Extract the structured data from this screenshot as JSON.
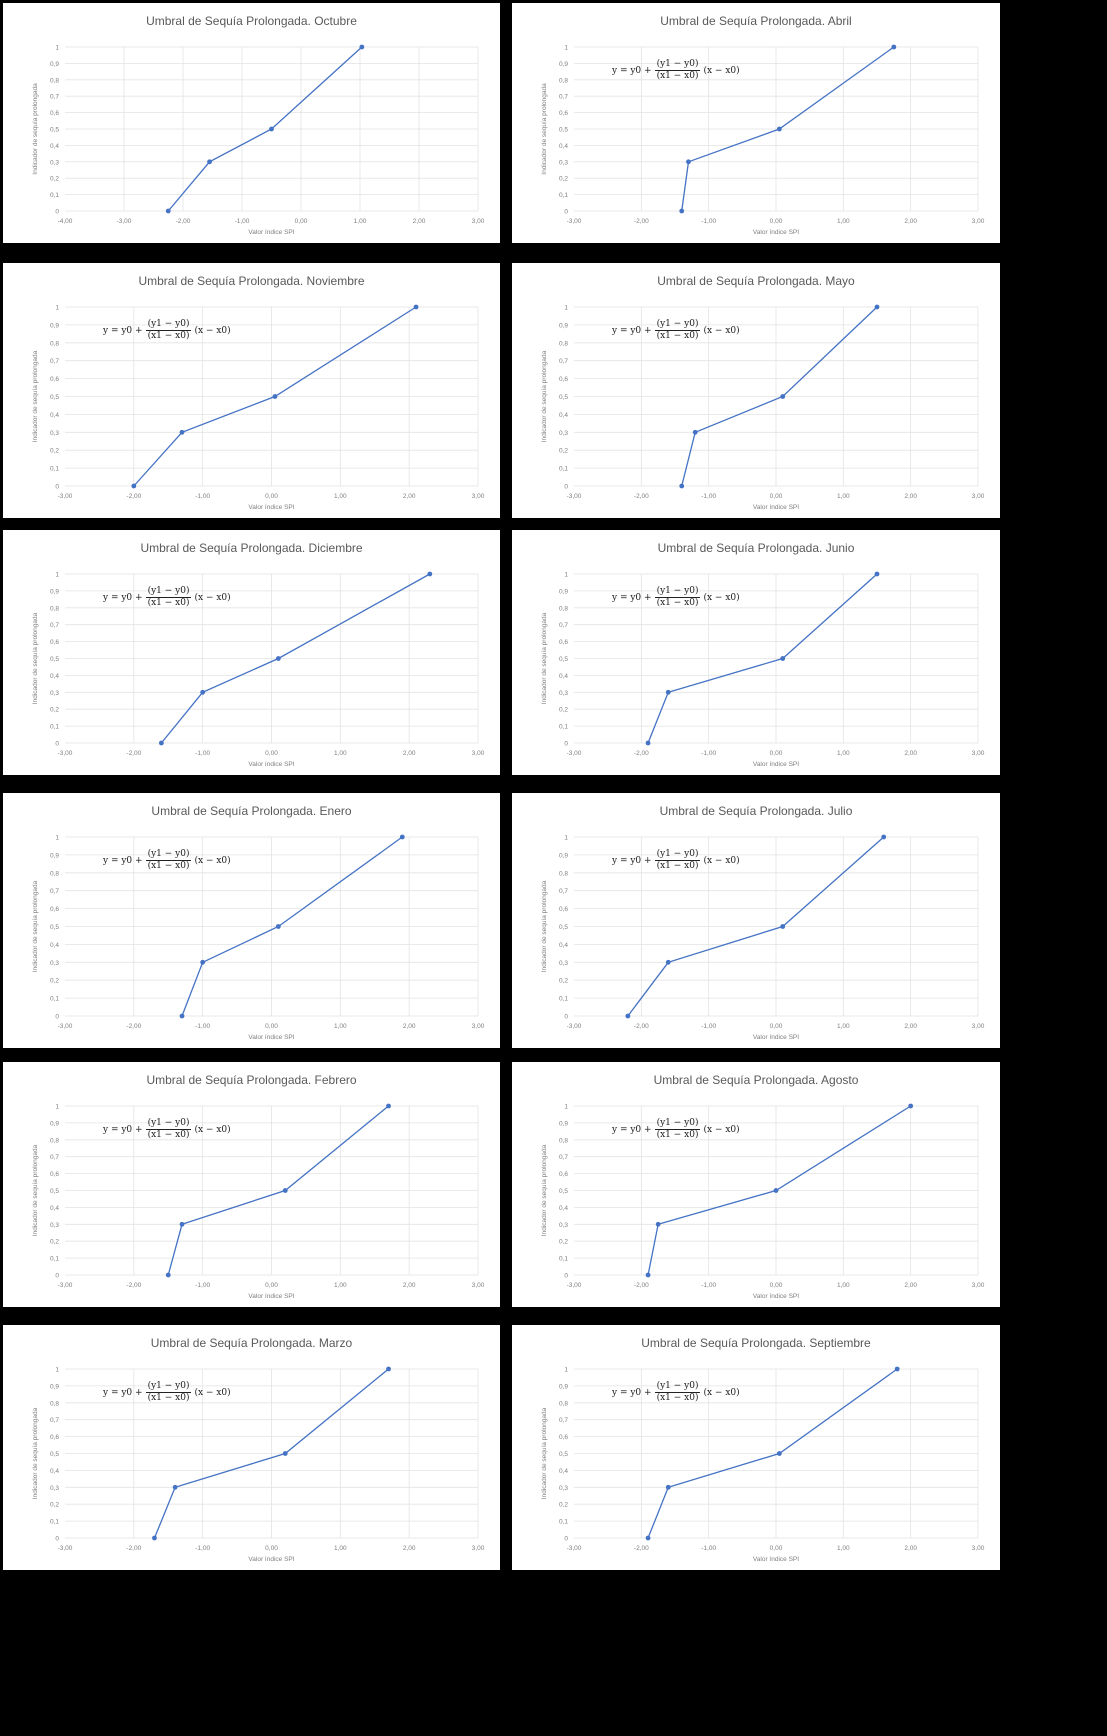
{
  "colors": {
    "series": "#4472c4",
    "grid": "#e3e3e3",
    "title": "#595959",
    "axis_text": "#7f7f7f"
  },
  "formula": {
    "lhs": "y = y0 +",
    "num": "(y1 − y0)",
    "den": "(x1 − x0)",
    "rhs": "(x − x0)"
  },
  "chart_data": [
    {
      "type": "line",
      "title": "Umbral de Sequía Prolongada. Octubre",
      "xlabel": "Valor índice SPI",
      "ylabel": "Indicador de sequía prolongada",
      "xlim": [
        -4,
        4
      ],
      "xticks": [
        "-4,00",
        "-3,00",
        "-2,00",
        "-1,00",
        "0,00",
        "1,00",
        "2,00",
        "3,00"
      ],
      "ylim": [
        0,
        1
      ],
      "yticks": [
        "0",
        "0,1",
        "0,2",
        "0,3",
        "0,4",
        "0,5",
        "0,6",
        "0,7",
        "0,8",
        "0,9",
        "1"
      ],
      "x": [
        -2.0,
        -1.2,
        0.0,
        1.75
      ],
      "y": [
        0,
        0.3,
        0.5,
        1
      ],
      "formula": false
    },
    {
      "type": "line",
      "title": "Umbral de Sequía Prolongada. Abril",
      "xlabel": "Valor índice SPI",
      "ylabel": "Indicador de sequía prolongada",
      "xlim": [
        -3,
        3
      ],
      "xticks": [
        "-3,00",
        "-2,00",
        "-1,00",
        "0,00",
        "1,00",
        "2,00",
        "3,00"
      ],
      "ylim": [
        0,
        1
      ],
      "yticks": [
        "0",
        "0,1",
        "0,2",
        "0,3",
        "0,4",
        "0,5",
        "0,6",
        "0,7",
        "0,8",
        "0,9",
        "1"
      ],
      "x": [
        -1.4,
        -1.3,
        0.05,
        1.75
      ],
      "y": [
        0,
        0.3,
        0.5,
        1
      ],
      "formula": true
    },
    {
      "type": "line",
      "title": "Umbral de Sequía Prolongada. Noviembre",
      "xlabel": "Valor índice SPI",
      "ylabel": "Indicador de sequía prolongada",
      "xlim": [
        -3,
        3
      ],
      "xticks": [
        "-3,00",
        "-2,00",
        "-1,00",
        "0,00",
        "1,00",
        "2,00",
        "3,00"
      ],
      "ylim": [
        0,
        1
      ],
      "yticks": [
        "0",
        "0,1",
        "0,2",
        "0,3",
        "0,4",
        "0,5",
        "0,6",
        "0,7",
        "0,8",
        "0,9",
        "1"
      ],
      "x": [
        -2.0,
        -1.3,
        0.05,
        2.1
      ],
      "y": [
        0,
        0.3,
        0.5,
        1
      ],
      "formula": true
    },
    {
      "type": "line",
      "title": "Umbral de Sequía Prolongada. Mayo",
      "xlabel": "Valor índice SPI",
      "ylabel": "Indicador de sequía prolongada",
      "xlim": [
        -3,
        3
      ],
      "xticks": [
        "-3,00",
        "-2,00",
        "-1,00",
        "0,00",
        "1,00",
        "2,00",
        "3,00"
      ],
      "ylim": [
        0,
        1
      ],
      "yticks": [
        "0",
        "0,1",
        "0,2",
        "0,3",
        "0,4",
        "0,5",
        "0,6",
        "0,7",
        "0,8",
        "0,9",
        "1"
      ],
      "x": [
        -1.4,
        -1.2,
        0.1,
        1.5
      ],
      "y": [
        0,
        0.3,
        0.5,
        1
      ],
      "formula": true
    },
    {
      "type": "line",
      "title": "Umbral de Sequía Prolongada. Diciembre",
      "xlabel": "Valor índice SPI",
      "ylabel": "Indicador de sequía prolongada",
      "xlim": [
        -3,
        3
      ],
      "xticks": [
        "-3,00",
        "-2,00",
        "-1,00",
        "0,00",
        "1,00",
        "2,00",
        "3,00"
      ],
      "ylim": [
        0,
        1
      ],
      "yticks": [
        "0",
        "0,1",
        "0,2",
        "0,3",
        "0,4",
        "0,5",
        "0,6",
        "0,7",
        "0,8",
        "0,9",
        "1"
      ],
      "x": [
        -1.6,
        -1.0,
        0.1,
        2.3
      ],
      "y": [
        0,
        0.3,
        0.5,
        1
      ],
      "formula": true
    },
    {
      "type": "line",
      "title": "Umbral de Sequía Prolongada. Junio",
      "xlabel": "Valor índice SPI",
      "ylabel": "Indicador de sequía prolongada",
      "xlim": [
        -3,
        3
      ],
      "xticks": [
        "-3,00",
        "-2,00",
        "-1,00",
        "0,00",
        "1,00",
        "2,00",
        "3,00"
      ],
      "ylim": [
        0,
        1
      ],
      "yticks": [
        "0",
        "0,1",
        "0,2",
        "0,3",
        "0,4",
        "0,5",
        "0,6",
        "0,7",
        "0,8",
        "0,9",
        "1"
      ],
      "x": [
        -1.9,
        -1.6,
        0.1,
        1.5
      ],
      "y": [
        0,
        0.3,
        0.5,
        1
      ],
      "formula": true
    },
    {
      "type": "line",
      "title": "Umbral de Sequía Prolongada. Enero",
      "xlabel": "Valor índice SPI",
      "ylabel": "Indicador de sequía prolongada",
      "xlim": [
        -3,
        3
      ],
      "xticks": [
        "-3,00",
        "-2,00",
        "-1,00",
        "0,00",
        "1,00",
        "2,00",
        "3,00"
      ],
      "ylim": [
        0,
        1
      ],
      "yticks": [
        "0",
        "0,1",
        "0,2",
        "0,3",
        "0,4",
        "0,5",
        "0,6",
        "0,7",
        "0,8",
        "0,9",
        "1"
      ],
      "x": [
        -1.3,
        -1.0,
        0.1,
        1.9
      ],
      "y": [
        0,
        0.3,
        0.5,
        1
      ],
      "formula": true
    },
    {
      "type": "line",
      "title": "Umbral de Sequía Prolongada. Julio",
      "xlabel": "Valor índice SPI",
      "ylabel": "Indicador de sequía prolongada",
      "xlim": [
        -3,
        3
      ],
      "xticks": [
        "-3,00",
        "-2,00",
        "-1,00",
        "0,00",
        "1,00",
        "2,00",
        "3,00"
      ],
      "ylim": [
        0,
        1
      ],
      "yticks": [
        "0",
        "0,1",
        "0,2",
        "0,3",
        "0,4",
        "0,5",
        "0,6",
        "0,7",
        "0,8",
        "0,9",
        "1"
      ],
      "x": [
        -2.2,
        -1.6,
        0.1,
        1.6
      ],
      "y": [
        0,
        0.3,
        0.5,
        1
      ],
      "formula": true
    },
    {
      "type": "line",
      "title": "Umbral de Sequía Prolongada. Febrero",
      "xlabel": "Valor índice SPI",
      "ylabel": "Indicador de sequía prolongada",
      "xlim": [
        -3,
        3
      ],
      "xticks": [
        "-3,00",
        "-2,00",
        "-1,00",
        "0,00",
        "1,00",
        "2,00",
        "3,00"
      ],
      "ylim": [
        0,
        1
      ],
      "yticks": [
        "0",
        "0,1",
        "0,2",
        "0,3",
        "0,4",
        "0,5",
        "0,6",
        "0,7",
        "0,8",
        "0,9",
        "1"
      ],
      "x": [
        -1.5,
        -1.3,
        0.2,
        1.7
      ],
      "y": [
        0,
        0.3,
        0.5,
        1
      ],
      "formula": true
    },
    {
      "type": "line",
      "title": "Umbral de Sequía Prolongada. Agosto",
      "xlabel": "Valor índice SPI",
      "ylabel": "Indicador de sequía prolongada",
      "xlim": [
        -3,
        3
      ],
      "xticks": [
        "-3,00",
        "-2,00",
        "-1,00",
        "0,00",
        "1,00",
        "2,00",
        "3,00"
      ],
      "ylim": [
        0,
        1
      ],
      "yticks": [
        "0",
        "0,1",
        "0,2",
        "0,3",
        "0,4",
        "0,5",
        "0,6",
        "0,7",
        "0,8",
        "0,9",
        "1"
      ],
      "x": [
        -1.9,
        -1.75,
        0.0,
        2.0
      ],
      "y": [
        0,
        0.3,
        0.5,
        1
      ],
      "formula": true
    },
    {
      "type": "line",
      "title": "Umbral de Sequía Prolongada. Marzo",
      "xlabel": "Valor índice SPI",
      "ylabel": "Indicador de sequía prolongada",
      "xlim": [
        -3,
        3
      ],
      "xticks": [
        "-3,00",
        "-2,00",
        "-1,00",
        "0,00",
        "1,00",
        "2,00",
        "3,00"
      ],
      "ylim": [
        0,
        1
      ],
      "yticks": [
        "0",
        "0,1",
        "0,2",
        "0,3",
        "0,4",
        "0,5",
        "0,6",
        "0,7",
        "0,8",
        "0,9",
        "1"
      ],
      "x": [
        -1.7,
        -1.4,
        0.2,
        1.7
      ],
      "y": [
        0,
        0.3,
        0.5,
        1
      ],
      "formula": true
    },
    {
      "type": "line",
      "title": "Umbral de Sequía Prolongada. Septiembre",
      "xlabel": "Valor índice SPI",
      "ylabel": "Indicador de sequía prolongada",
      "xlim": [
        -3,
        3
      ],
      "xticks": [
        "-3,00",
        "-2,00",
        "-1,00",
        "0,00",
        "1,00",
        "2,00",
        "3,00"
      ],
      "ylim": [
        0,
        1
      ],
      "yticks": [
        "0",
        "0,1",
        "0,2",
        "0,3",
        "0,4",
        "0,5",
        "0,6",
        "0,7",
        "0,8",
        "0,9",
        "1"
      ],
      "x": [
        -1.9,
        -1.6,
        0.05,
        1.8
      ],
      "y": [
        0,
        0.3,
        0.5,
        1
      ],
      "formula": true
    }
  ]
}
